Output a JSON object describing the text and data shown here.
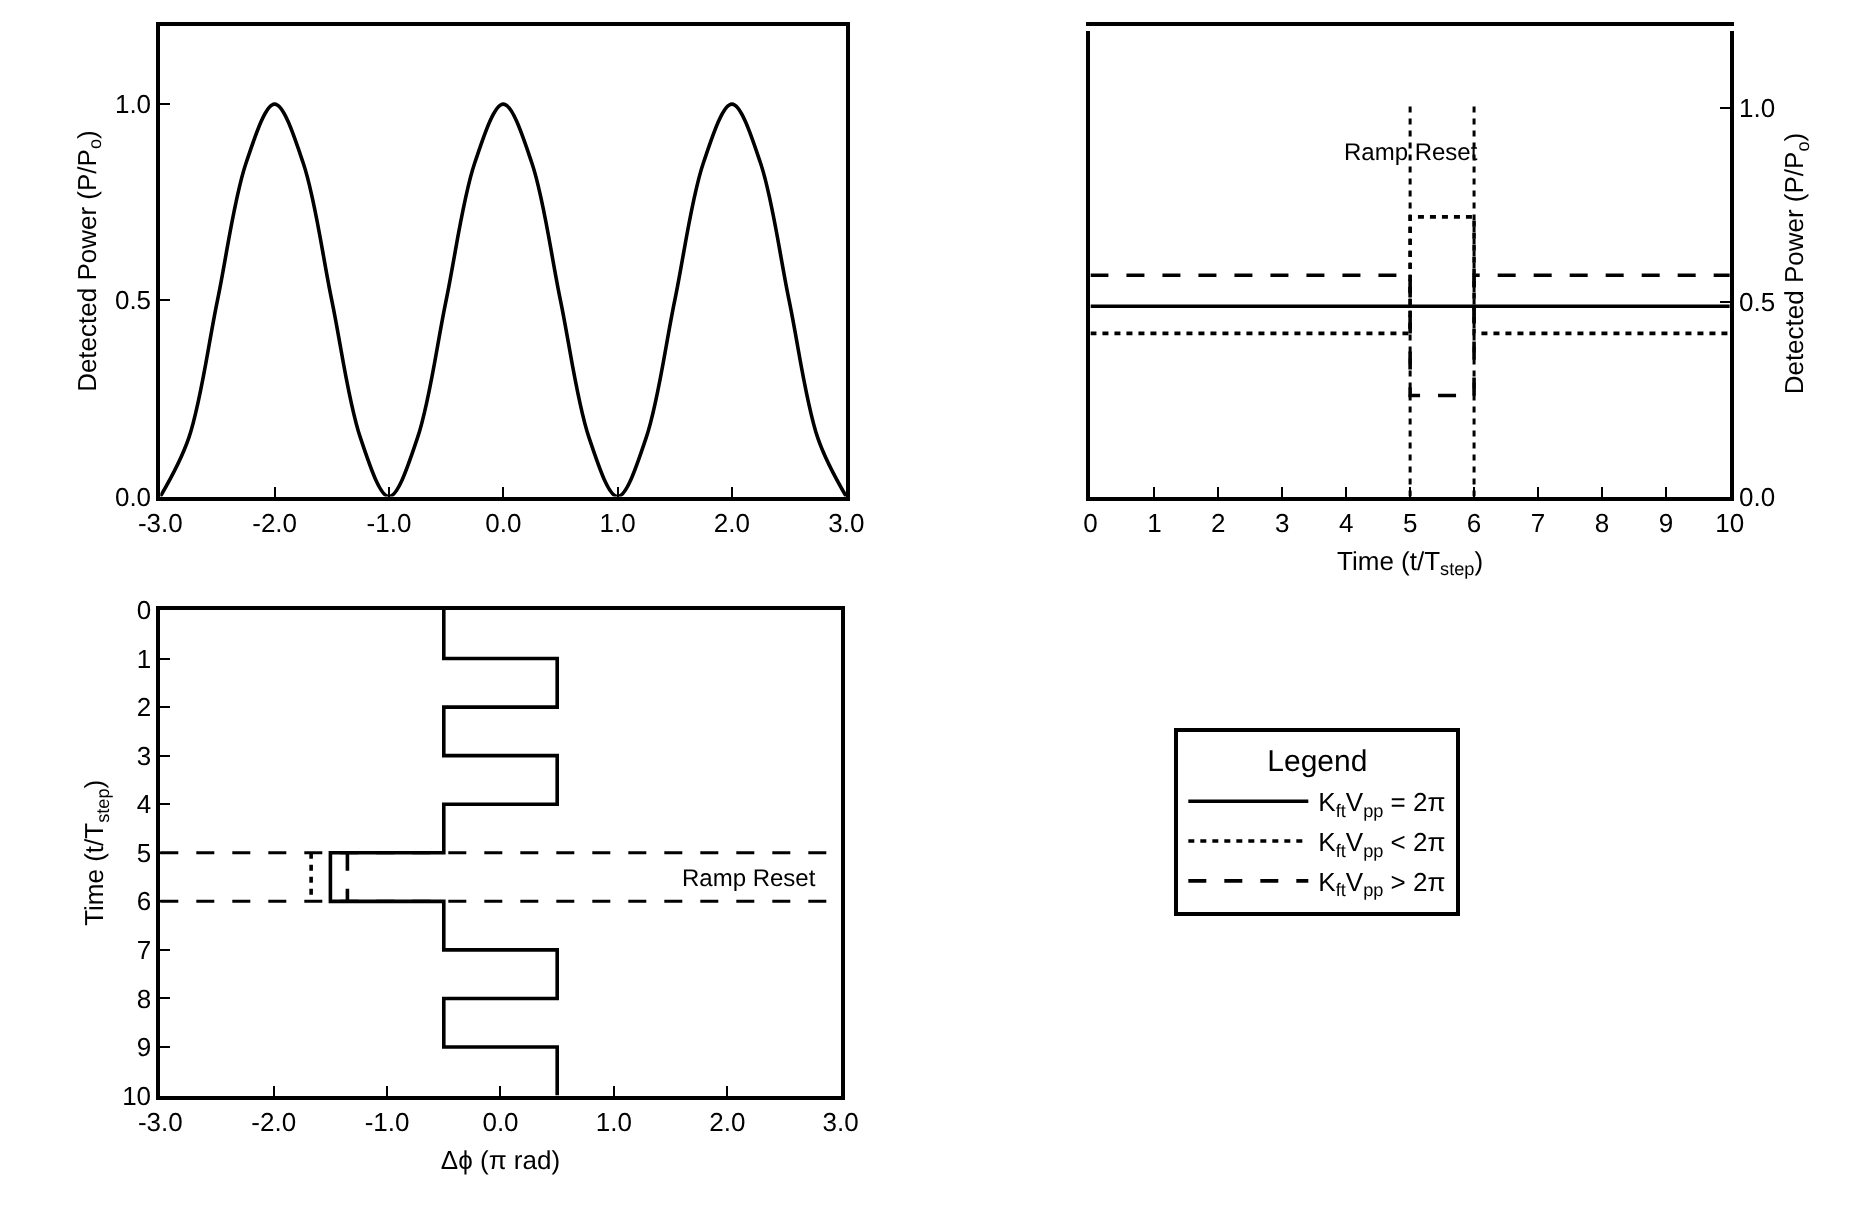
{
  "chart_data": [
    {
      "type": "line",
      "ylabel": "Detected Power (P/P$_{o}$)",
      "x": [
        -3,
        -2.75,
        -2.5,
        -2.25,
        -2,
        -1.75,
        -1.5,
        -1.25,
        -1,
        -0.75,
        -0.5,
        -0.25,
        0,
        0.25,
        0.5,
        0.75,
        1,
        1.25,
        1.5,
        1.75,
        2,
        2.25,
        2.5,
        2.75,
        3
      ],
      "series": [
        {
          "color": "#000000",
          "line_style": "solid",
          "values": [
            0,
            0.15,
            0.5,
            0.85,
            1,
            0.85,
            0.5,
            0.15,
            0,
            0.15,
            0.5,
            0.85,
            1,
            0.85,
            0.5,
            0.15,
            0,
            0.15,
            0.5,
            0.85,
            1,
            0.85,
            0.5,
            0.15,
            0
          ]
        }
      ],
      "xlim": [
        -3,
        3
      ],
      "ylim": [
        0,
        1.2
      ],
      "xticks": [
        {
          "value": -3,
          "label": "-3.0"
        },
        {
          "value": -2,
          "label": "-2.0"
        },
        {
          "value": -1,
          "label": "-1.0"
        },
        {
          "value": 0,
          "label": "0.0"
        },
        {
          "value": 1,
          "label": "1.0"
        },
        {
          "value": 2,
          "label": "2.0"
        },
        {
          "value": 3,
          "label": "3.0"
        }
      ],
      "yticks": [
        {
          "value": 0,
          "label": "0.0"
        },
        {
          "value": 0.5,
          "label": "0.5"
        },
        {
          "value": 1,
          "label": "1.0"
        }
      ],
      "marker": "none"
    },
    {
      "type": "step",
      "xlabel": "Time (t/T$_{step}$)",
      "y2label": "Detected Power (P/P$_{o}$)",
      "x": [
        0,
        5,
        6,
        10
      ],
      "series": [
        {
          "name": "K$_{ft}$V$_{pp}$ = 2π",
          "color": "#000000",
          "line_style": "solid",
          "axis": "y2",
          "values": [
            0.49,
            0.49,
            0.49,
            0.49
          ]
        },
        {
          "name": "K$_{ft}$V$_{pp}$ < 2π",
          "color": "#000000",
          "line_style": "dotted",
          "axis": "y2",
          "values": [
            0.42,
            0.72,
            0.42,
            0.42
          ]
        },
        {
          "name": "K$_{ft}$V$_{pp}$ > 2π",
          "color": "#000000",
          "line_style": "dashed",
          "axis": "y2",
          "values": [
            0.57,
            0.26,
            0.57,
            0.57
          ]
        }
      ],
      "xlim": [
        0,
        10
      ],
      "y2lim": [
        0,
        1.2
      ],
      "xticks": [
        0,
        1,
        2,
        3,
        4,
        5,
        6,
        7,
        8,
        9,
        10
      ],
      "y2ticks": [
        {
          "value": 0,
          "label": "0.0"
        },
        {
          "value": 0.5,
          "label": "0.5"
        },
        {
          "value": 1,
          "label": "1.0"
        }
      ],
      "ref_lines": [
        {
          "axis": "x",
          "value": 5,
          "line_style": "dotted",
          "color": "#000000"
        },
        {
          "axis": "x",
          "value": 6,
          "line_style": "dotted",
          "color": "#000000"
        }
      ],
      "annotations": [
        "Ramp Reset"
      ],
      "legend_title": "Legend",
      "legend": "bottom",
      "marker": "none"
    },
    {
      "type": "line",
      "xlabel": "Δϕ (π rad)",
      "ylabel": "Time (t/T$_{step}$)",
      "series": [
        {
          "color": "#000000",
          "line_style": "solid",
          "x": [
            -0.5,
            -0.5,
            0.5,
            0.5,
            -0.5,
            -0.5,
            0.5,
            0.5,
            -0.5,
            -0.5,
            -1.5,
            -1.5,
            -0.5,
            -0.5,
            0.5,
            0.5,
            -0.5,
            -0.5,
            0.5,
            0.5
          ],
          "values": [
            0,
            1,
            1,
            2,
            2,
            3,
            3,
            4,
            4,
            5,
            5,
            6,
            6,
            7,
            7,
            8,
            8,
            9,
            9,
            10
          ]
        },
        {
          "color": "#000000",
          "line_style": "dotted",
          "x": [
            -1.67,
            -1.67
          ],
          "values": [
            5,
            6
          ]
        },
        {
          "color": "#000000",
          "line_style": "dashed",
          "x": [
            -1.35,
            -1.35
          ],
          "values": [
            5,
            6
          ]
        }
      ],
      "xlim": [
        -3,
        3
      ],
      "ylim": [
        10,
        0
      ],
      "xticks": [
        {
          "value": -3,
          "label": "-3.0"
        },
        {
          "value": -2,
          "label": "-2.0"
        },
        {
          "value": -1,
          "label": "-1.0"
        },
        {
          "value": 0,
          "label": "0.0"
        },
        {
          "value": 1,
          "label": "1.0"
        },
        {
          "value": 2,
          "label": "2.0"
        },
        {
          "value": 3,
          "label": "3.0"
        }
      ],
      "yticks": [
        0,
        1,
        2,
        3,
        4,
        5,
        6,
        7,
        8,
        9,
        10
      ],
      "ref_lines": [
        {
          "axis": "y",
          "value": 5,
          "line_style": "dashed",
          "color": "#000000"
        },
        {
          "axis": "y",
          "value": 6,
          "line_style": "dashed",
          "color": "#000000"
        }
      ],
      "annotations": [
        "Ramp Reset"
      ],
      "marker": "none"
    }
  ]
}
